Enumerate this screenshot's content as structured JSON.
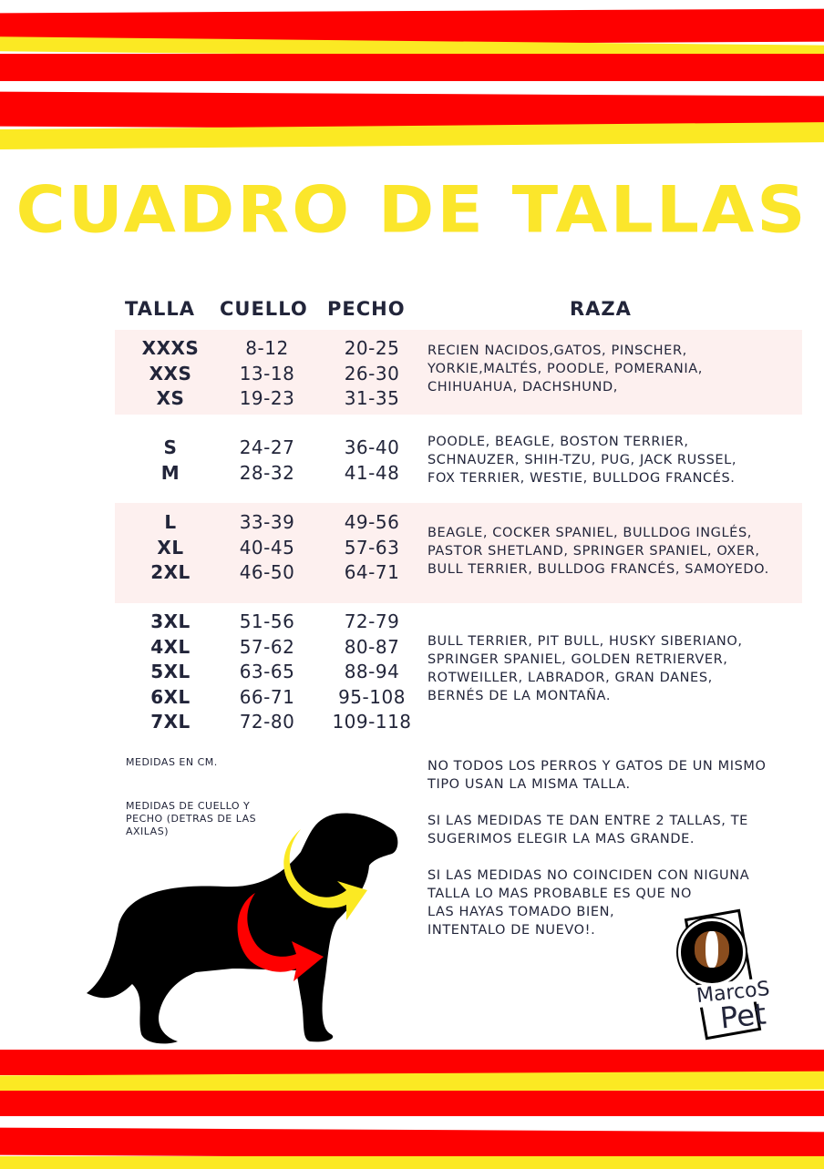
{
  "title": "CUADRO DE TALLAS",
  "headers": {
    "talla": "TALLA",
    "cuello": "CUELLO",
    "pecho": "PECHO",
    "raza": "RAZA"
  },
  "groups": [
    {
      "tallas": "XXXS\nXXS\nXS",
      "cuello": "8-12\n13-18\n19-23",
      "pecho": "20-25\n26-30\n31-35",
      "raza": "RECIEN NACIDOS,GATOS, PINSCHER,\nYORKIE,MALTÉS, POODLE, POMERANIA,\nCHIHUAHUA, DACHSHUND,"
    },
    {
      "tallas": "S\nM",
      "cuello": "24-27\n28-32",
      "pecho": "36-40\n41-48",
      "raza": "POODLE, BEAGLE, BOSTON TERRIER,\nSCHNAUZER, SHIH-TZU, PUG, JACK RUSSEL,\nFOX TERRIER, WESTIE, BULLDOG FRANCÉS."
    },
    {
      "tallas": "L\nXL\n2XL",
      "cuello": "33-39\n40-45\n46-50",
      "pecho": "49-56\n57-63\n64-71",
      "raza": "BEAGLE, COCKER SPANIEL, BULLDOG INGLÉS,\nPASTOR SHETLAND, SPRINGER SPANIEL, OXER,\nBULL TERRIER, BULLDOG FRANCÉS, SAMOYEDO."
    },
    {
      "tallas": "3XL\n4XL\n5XL\n6XL\n7XL",
      "cuello": "51-56\n57-62\n63-65\n66-71\n72-80",
      "pecho": "72-79\n80-87\n88-94\n95-108\n109-118",
      "raza": "BULL TERRIER, PIT BULL, HUSKY SIBERIANO,\nSPRINGER SPANIEL, GOLDEN RETRIERVER,\nROTWEILLER, LABRADOR, GRAN DANES,\nBERNÉS DE LA MONTAÑA."
    }
  ],
  "notes_left": [
    "MEDIDAS EN CM.",
    "MEDIDAS DE CUELLO Y\nPECHO (DETRAS DE LAS\nAXILAS)"
  ],
  "notes_right": [
    "NO TODOS LOS PERROS Y GATOS DE UN MISMO\nTIPO USAN LA MISMA TALLA.",
    "SI LAS MEDIDAS TE DAN ENTRE 2 TALLAS, TE\nSUGERIMOS ELEGIR LA MAS GRANDE.",
    "SI LAS MEDIDAS NO COINCIDEN CON NIGUNA\nTALLA LO MAS PROBABLE ES QUE NO\nLAS HAYAS TOMADO BIEN,\nINTENTALO DE NUEVO!."
  ],
  "logo": {
    "line1": "MarcoS",
    "line2": "Pet"
  },
  "colors": {
    "red": "#fe0000",
    "yellow": "#fbe923",
    "title": "#fbe62b",
    "band": "#fdf0ef",
    "text": "#22253a"
  }
}
